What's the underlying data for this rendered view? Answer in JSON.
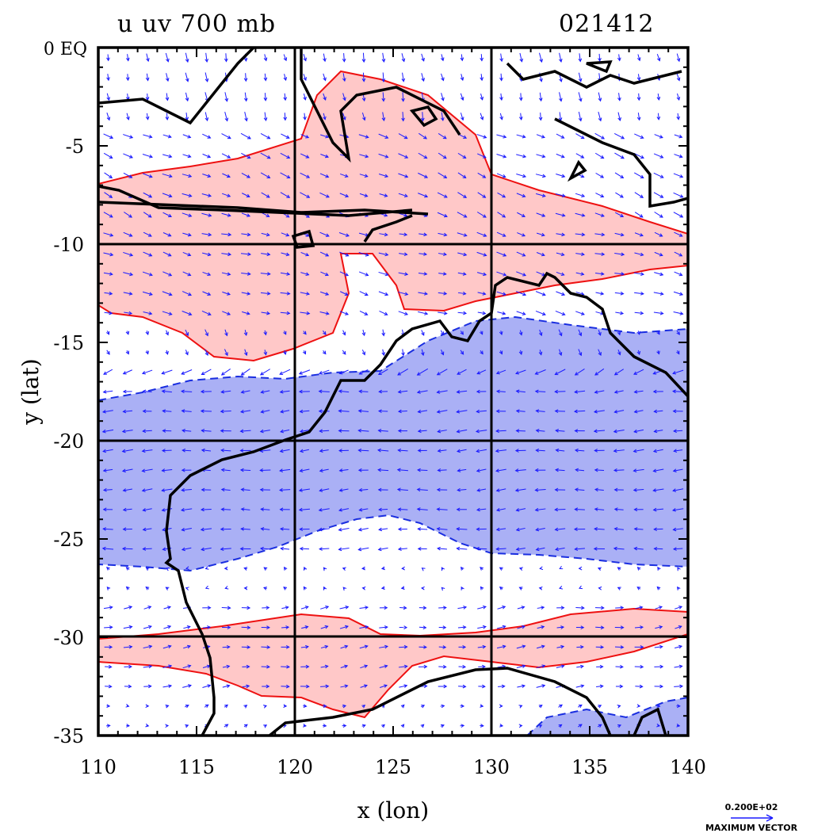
{
  "title": {
    "left": "u uv 700 mb",
    "right": "021412"
  },
  "axes": {
    "xlabel": "x (lon)",
    "ylabel": "y (lat)",
    "x_ticks": [
      "110",
      "115",
      "120",
      "125",
      "130",
      "135",
      "140"
    ],
    "y_ticks": [
      "0 EQ",
      "-5",
      "-10",
      "-15",
      "-20",
      "-25",
      "-30",
      "-35"
    ],
    "lon_range": [
      110,
      140
    ],
    "lat_range": [
      -35,
      0
    ]
  },
  "legend": {
    "vector_value": "0.200E+02",
    "vector_caption": "MAXIMUM VECTOR"
  },
  "map": {
    "grid_lines_lon": [
      120,
      130
    ],
    "grid_lines_lat": [
      -10,
      -20,
      -30
    ],
    "coastline_color": "#000000",
    "vector_color": "#1a1aff",
    "positive_fill": "#ffc8c8",
    "positive_contour": "#ee1111",
    "negative_fill": "#aab0f5",
    "negative_contour": "#1a2ee0"
  },
  "chart_data": {
    "type": "heatmap",
    "variable": "u wind with uv vectors",
    "level": "700 mb",
    "positive_zones_lat": [
      [
        -5,
        -14
      ],
      [
        -29,
        -33
      ]
    ],
    "negative_zones_lat": [
      [
        -14,
        -26
      ]
    ],
    "mean_flow_direction": "easterly in negative zone, westerly in positive zones"
  }
}
